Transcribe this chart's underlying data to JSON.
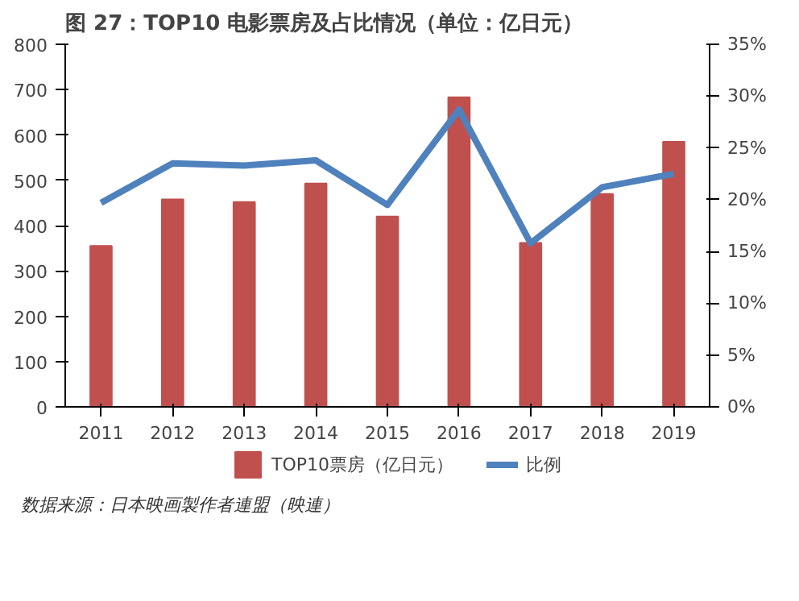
{
  "chart_data": {
    "type": "bar",
    "title": "图 27：TOP10 电影票房及占比情况（单位：亿日元）",
    "categories": [
      "2011",
      "2012",
      "2013",
      "2014",
      "2015",
      "2016",
      "2017",
      "2018",
      "2019"
    ],
    "series": [
      {
        "name": "TOP10票房（亿日元）",
        "color": "#c0504d",
        "values": [
          355,
          458,
          452,
          493,
          420,
          683,
          362,
          470,
          585
        ]
      },
      {
        "name": "比例",
        "color": "#4f81bd",
        "type": "line",
        "axis": "y2",
        "values": [
          19.7,
          23.5,
          23.3,
          23.8,
          19.5,
          28.7,
          15.8,
          21.2,
          22.5
        ]
      }
    ],
    "ylim": [
      0,
      800
    ],
    "yticks": [
      0,
      100,
      200,
      300,
      400,
      500,
      600,
      700,
      800
    ],
    "y2lim": [
      0,
      35
    ],
    "y2ticks": [
      {
        "value": 0,
        "label": "0%"
      },
      {
        "value": 5,
        "label": "5%"
      },
      {
        "value": 10,
        "label": "10%"
      },
      {
        "value": 15,
        "label": "15%"
      },
      {
        "value": 20,
        "label": "20%"
      },
      {
        "value": 25,
        "label": "25%"
      },
      {
        "value": 30,
        "label": "30%"
      },
      {
        "value": 35,
        "label": "35%"
      }
    ],
    "legend": "bottom",
    "grid": false,
    "marker": "none",
    "annotations": [
      "数据来源：日本映画製作者連盟（映連）"
    ]
  }
}
